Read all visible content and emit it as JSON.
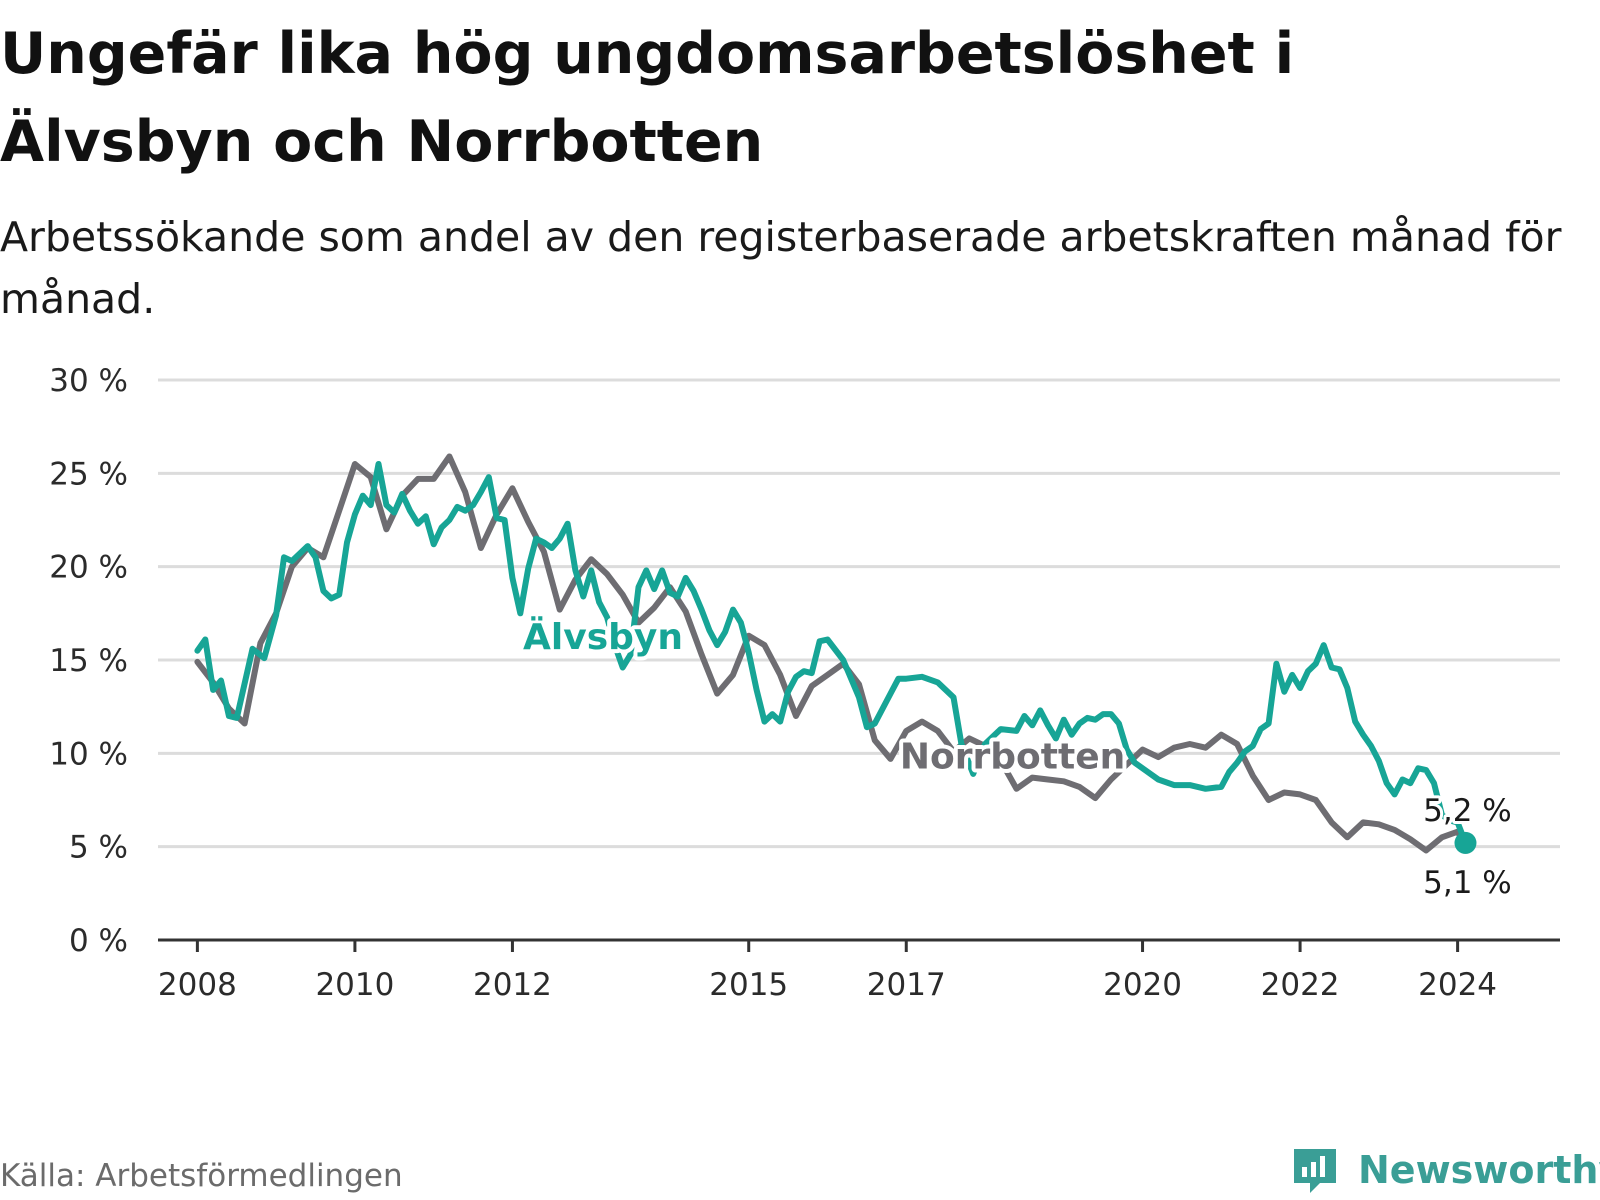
{
  "header": {
    "title": "Ungefär lika hög ungdomsarbetslöshet i Älvsbyn och Norrbotten",
    "subtitle": "Arbetssökande som andel av den registerbaserade arbetskraften månad för månad."
  },
  "footer": {
    "source": "Källa: Arbetsförmedlingen",
    "brand": "Newsworthy",
    "brand_icon": "newsworthy-logo-icon"
  },
  "colors": {
    "alvsbyn": "#17a596",
    "norrbotten": "#6e6d72",
    "grid": "#dcdcdc",
    "axis": "#333333"
  },
  "chart_data": {
    "type": "line",
    "title": "Ungefär lika hög ungdomsarbetslöshet i Älvsbyn och Norrbotten",
    "xlabel": "",
    "ylabel": "",
    "ylim": [
      0,
      30
    ],
    "xlim": [
      2007.5,
      2025.3
    ],
    "y_ticks": [
      0,
      5,
      10,
      15,
      20,
      25,
      30
    ],
    "y_tick_labels": [
      "0 %",
      "5 %",
      "10 %",
      "15 %",
      "20 %",
      "25 %",
      "30 %"
    ],
    "x_ticks": [
      2008,
      2010,
      2012,
      2015,
      2017,
      2020,
      2022,
      2024
    ],
    "x_tick_labels": [
      "2008",
      "2010",
      "2012",
      "2015",
      "2017",
      "2020",
      "2022",
      "2024"
    ],
    "grid": true,
    "series": [
      {
        "name": "Norrbotten",
        "color": "#6e6d72",
        "end_label": "5,1 %",
        "points": [
          [
            2008.0,
            14.9
          ],
          [
            2008.2,
            13.8
          ],
          [
            2008.4,
            12.4
          ],
          [
            2008.6,
            11.6
          ],
          [
            2008.8,
            15.9
          ],
          [
            2009.0,
            17.5
          ],
          [
            2009.2,
            20.0
          ],
          [
            2009.4,
            21.0
          ],
          [
            2009.6,
            20.5
          ],
          [
            2009.8,
            23.0
          ],
          [
            2010.0,
            25.5
          ],
          [
            2010.2,
            24.8
          ],
          [
            2010.4,
            22.0
          ],
          [
            2010.6,
            23.8
          ],
          [
            2010.8,
            24.7
          ],
          [
            2011.0,
            24.7
          ],
          [
            2011.2,
            25.9
          ],
          [
            2011.4,
            24.0
          ],
          [
            2011.6,
            21.0
          ],
          [
            2011.8,
            22.8
          ],
          [
            2012.0,
            24.2
          ],
          [
            2012.2,
            22.4
          ],
          [
            2012.4,
            20.8
          ],
          [
            2012.6,
            17.7
          ],
          [
            2012.8,
            19.3
          ],
          [
            2013.0,
            20.4
          ],
          [
            2013.2,
            19.6
          ],
          [
            2013.4,
            18.5
          ],
          [
            2013.6,
            17.0
          ],
          [
            2013.8,
            17.8
          ],
          [
            2014.0,
            18.9
          ],
          [
            2014.2,
            17.6
          ],
          [
            2014.4,
            15.3
          ],
          [
            2014.6,
            13.2
          ],
          [
            2014.8,
            14.2
          ],
          [
            2015.0,
            16.3
          ],
          [
            2015.2,
            15.8
          ],
          [
            2015.4,
            14.2
          ],
          [
            2015.6,
            12.0
          ],
          [
            2015.8,
            13.6
          ],
          [
            2016.0,
            14.2
          ],
          [
            2016.2,
            14.8
          ],
          [
            2016.4,
            13.7
          ],
          [
            2016.6,
            10.7
          ],
          [
            2016.8,
            9.7
          ],
          [
            2017.0,
            11.2
          ],
          [
            2017.2,
            11.7
          ],
          [
            2017.4,
            11.2
          ],
          [
            2017.6,
            10.1
          ],
          [
            2017.8,
            10.8
          ],
          [
            2018.0,
            10.4
          ],
          [
            2018.2,
            9.6
          ],
          [
            2018.4,
            8.1
          ],
          [
            2018.6,
            8.7
          ],
          [
            2018.8,
            8.6
          ],
          [
            2019.0,
            8.5
          ],
          [
            2019.2,
            8.2
          ],
          [
            2019.4,
            7.6
          ],
          [
            2019.6,
            8.6
          ],
          [
            2019.8,
            9.4
          ],
          [
            2020.0,
            10.2
          ],
          [
            2020.2,
            9.8
          ],
          [
            2020.4,
            10.3
          ],
          [
            2020.6,
            10.5
          ],
          [
            2020.8,
            10.3
          ],
          [
            2021.0,
            11.0
          ],
          [
            2021.2,
            10.5
          ],
          [
            2021.4,
            8.8
          ],
          [
            2021.6,
            7.5
          ],
          [
            2021.8,
            7.9
          ],
          [
            2022.0,
            7.8
          ],
          [
            2022.2,
            7.5
          ],
          [
            2022.4,
            6.3
          ],
          [
            2022.6,
            5.5
          ],
          [
            2022.8,
            6.3
          ],
          [
            2023.0,
            6.2
          ],
          [
            2023.2,
            5.9
          ],
          [
            2023.4,
            5.4
          ],
          [
            2023.6,
            4.8
          ],
          [
            2023.8,
            5.5
          ],
          [
            2024.0,
            5.8
          ],
          [
            2024.1,
            5.1
          ]
        ]
      },
      {
        "name": "Älvsbyn",
        "color": "#17a596",
        "end_label": "5,2 %",
        "points": [
          [
            2008.0,
            15.5
          ],
          [
            2008.1,
            16.1
          ],
          [
            2008.2,
            13.4
          ],
          [
            2008.3,
            13.9
          ],
          [
            2008.4,
            12.0
          ],
          [
            2008.5,
            11.9
          ],
          [
            2008.7,
            15.6
          ],
          [
            2008.85,
            15.1
          ],
          [
            2009.0,
            17.4
          ],
          [
            2009.1,
            20.5
          ],
          [
            2009.2,
            20.3
          ],
          [
            2009.4,
            21.1
          ],
          [
            2009.5,
            20.5
          ],
          [
            2009.6,
            18.7
          ],
          [
            2009.7,
            18.3
          ],
          [
            2009.8,
            18.5
          ],
          [
            2009.9,
            21.3
          ],
          [
            2010.0,
            22.8
          ],
          [
            2010.1,
            23.8
          ],
          [
            2010.2,
            23.3
          ],
          [
            2010.3,
            25.5
          ],
          [
            2010.4,
            23.3
          ],
          [
            2010.5,
            22.9
          ],
          [
            2010.6,
            23.9
          ],
          [
            2010.7,
            23.0
          ],
          [
            2010.8,
            22.3
          ],
          [
            2010.9,
            22.7
          ],
          [
            2011.0,
            21.2
          ],
          [
            2011.1,
            22.1
          ],
          [
            2011.2,
            22.5
          ],
          [
            2011.3,
            23.2
          ],
          [
            2011.4,
            23.0
          ],
          [
            2011.5,
            23.3
          ],
          [
            2011.6,
            24.0
          ],
          [
            2011.7,
            24.8
          ],
          [
            2011.8,
            22.6
          ],
          [
            2011.9,
            22.5
          ],
          [
            2012.0,
            19.4
          ],
          [
            2012.1,
            17.5
          ],
          [
            2012.2,
            19.9
          ],
          [
            2012.3,
            21.5
          ],
          [
            2012.4,
            21.3
          ],
          [
            2012.5,
            21.0
          ],
          [
            2012.6,
            21.5
          ],
          [
            2012.7,
            22.3
          ],
          [
            2012.8,
            19.8
          ],
          [
            2012.9,
            18.4
          ],
          [
            2013.0,
            19.8
          ],
          [
            2013.1,
            18.1
          ],
          [
            2013.2,
            17.3
          ],
          [
            2013.3,
            15.8
          ],
          [
            2013.4,
            14.6
          ],
          [
            2013.5,
            15.3
          ],
          [
            2013.6,
            18.9
          ],
          [
            2013.7,
            19.8
          ],
          [
            2013.8,
            18.8
          ],
          [
            2013.9,
            19.8
          ],
          [
            2014.0,
            18.6
          ],
          [
            2014.1,
            18.4
          ],
          [
            2014.2,
            19.4
          ],
          [
            2014.3,
            18.7
          ],
          [
            2014.4,
            17.7
          ],
          [
            2014.5,
            16.6
          ],
          [
            2014.6,
            15.8
          ],
          [
            2014.7,
            16.5
          ],
          [
            2014.8,
            17.7
          ],
          [
            2014.9,
            17.0
          ],
          [
            2015.0,
            15.4
          ],
          [
            2015.1,
            13.4
          ],
          [
            2015.2,
            11.7
          ],
          [
            2015.3,
            12.1
          ],
          [
            2015.4,
            11.7
          ],
          [
            2015.5,
            13.3
          ],
          [
            2015.6,
            14.1
          ],
          [
            2015.7,
            14.4
          ],
          [
            2015.8,
            14.3
          ],
          [
            2015.9,
            16.0
          ],
          [
            2016.0,
            16.1
          ],
          [
            2016.2,
            15.0
          ],
          [
            2016.4,
            13.0
          ],
          [
            2016.5,
            11.4
          ],
          [
            2016.6,
            11.6
          ],
          [
            2016.8,
            13.2
          ],
          [
            2016.9,
            14.0
          ],
          [
            2017.0,
            14.0
          ],
          [
            2017.2,
            14.1
          ],
          [
            2017.4,
            13.8
          ],
          [
            2017.6,
            13.0
          ],
          [
            2017.7,
            10.5
          ],
          [
            2017.85,
            8.9
          ],
          [
            2018.0,
            10.5
          ],
          [
            2018.2,
            11.3
          ],
          [
            2018.4,
            11.2
          ],
          [
            2018.5,
            12.0
          ],
          [
            2018.6,
            11.5
          ],
          [
            2018.7,
            12.3
          ],
          [
            2018.8,
            11.5
          ],
          [
            2018.9,
            10.8
          ],
          [
            2019.0,
            11.8
          ],
          [
            2019.1,
            11.0
          ],
          [
            2019.2,
            11.6
          ],
          [
            2019.3,
            11.9
          ],
          [
            2019.4,
            11.8
          ],
          [
            2019.5,
            12.1
          ],
          [
            2019.6,
            12.1
          ],
          [
            2019.7,
            11.6
          ],
          [
            2019.8,
            10.2
          ],
          [
            2019.9,
            9.5
          ],
          [
            2020.0,
            9.2
          ],
          [
            2020.2,
            8.6
          ],
          [
            2020.4,
            8.3
          ],
          [
            2020.6,
            8.3
          ],
          [
            2020.8,
            8.1
          ],
          [
            2021.0,
            8.2
          ],
          [
            2021.1,
            9.0
          ],
          [
            2021.2,
            9.5
          ],
          [
            2021.3,
            10.1
          ],
          [
            2021.4,
            10.4
          ],
          [
            2021.5,
            11.3
          ],
          [
            2021.6,
            11.6
          ],
          [
            2021.7,
            14.8
          ],
          [
            2021.8,
            13.3
          ],
          [
            2021.9,
            14.2
          ],
          [
            2022.0,
            13.5
          ],
          [
            2022.1,
            14.4
          ],
          [
            2022.2,
            14.8
          ],
          [
            2022.3,
            15.8
          ],
          [
            2022.4,
            14.6
          ],
          [
            2022.5,
            14.5
          ],
          [
            2022.6,
            13.5
          ],
          [
            2022.7,
            11.7
          ],
          [
            2022.8,
            11.0
          ],
          [
            2022.9,
            10.4
          ],
          [
            2023.0,
            9.6
          ],
          [
            2023.1,
            8.4
          ],
          [
            2023.2,
            7.8
          ],
          [
            2023.3,
            8.6
          ],
          [
            2023.4,
            8.4
          ],
          [
            2023.5,
            9.2
          ],
          [
            2023.6,
            9.1
          ],
          [
            2023.7,
            8.4
          ],
          [
            2023.8,
            6.7
          ],
          [
            2023.9,
            6.4
          ],
          [
            2024.0,
            6.3
          ],
          [
            2024.1,
            5.2
          ]
        ]
      }
    ],
    "labels": [
      {
        "text": "Älvsbyn",
        "series": "Älvsbyn",
        "x": 2013.15,
        "y": 15.6
      },
      {
        "text": "Norrbotten",
        "series": "Norrbotten",
        "x": 2018.35,
        "y": 9.2
      }
    ]
  }
}
